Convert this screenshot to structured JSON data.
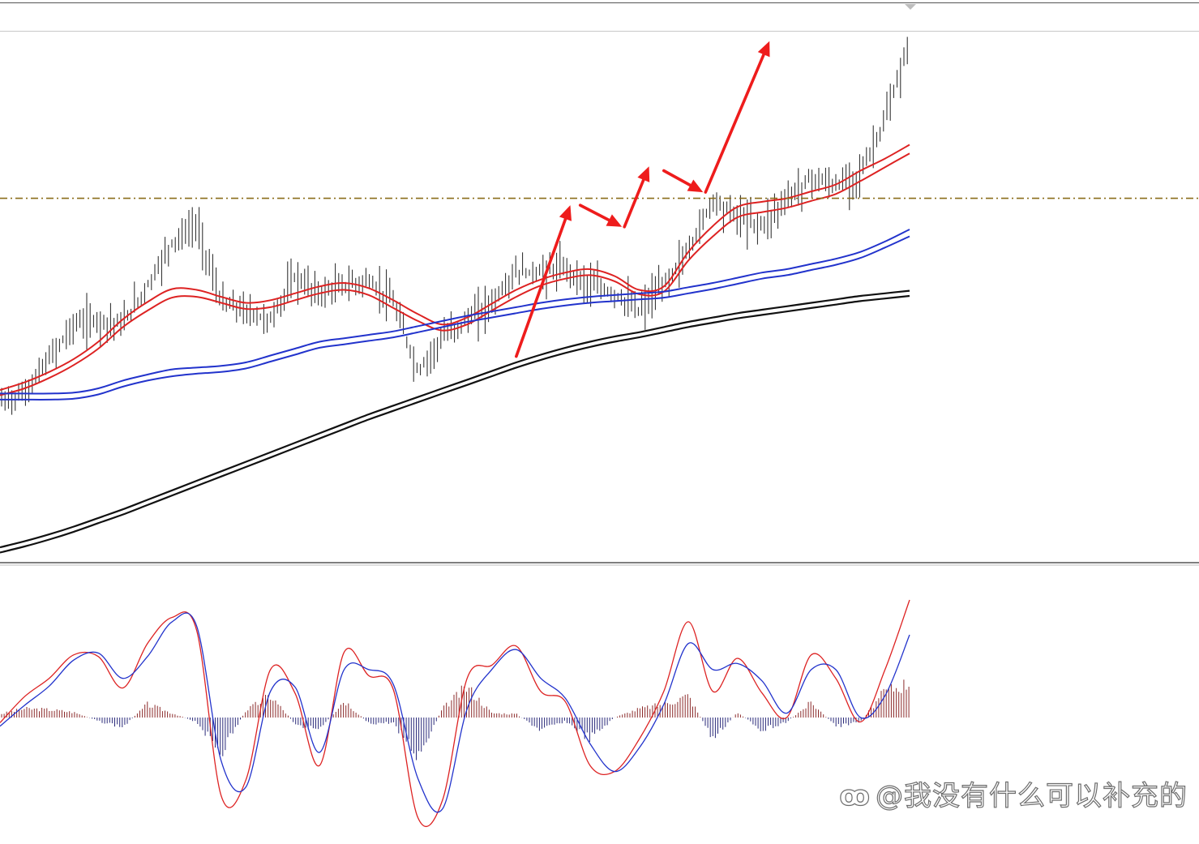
{
  "chart_data": {
    "type": "line",
    "title": "",
    "xlabel": "",
    "ylabel": "",
    "grid": false,
    "price_panel": {
      "series": [
        {
          "role": "ema_fast_1",
          "color": "#dd2222",
          "values": [
            0.16,
            0.25,
            0.37,
            0.52,
            0.72,
            0.98,
            1.18,
            1.33,
            1.32,
            1.24,
            1.17,
            1.2,
            1.28,
            1.36,
            1.4,
            1.34,
            1.2,
            1.04,
            0.92,
            1.0,
            1.16,
            1.32,
            1.44,
            1.52,
            1.56,
            1.48,
            1.32,
            1.36,
            1.76,
            2.06,
            2.28,
            2.34,
            2.38,
            2.46,
            2.54,
            2.7,
            2.84,
            3.0
          ]
        },
        {
          "role": "ema_fast_2",
          "color": "#dd2222",
          "values": [
            0.1,
            0.18,
            0.3,
            0.45,
            0.64,
            0.89,
            1.08,
            1.23,
            1.24,
            1.17,
            1.1,
            1.12,
            1.2,
            1.28,
            1.32,
            1.26,
            1.11,
            0.96,
            0.85,
            0.92,
            1.08,
            1.24,
            1.37,
            1.45,
            1.49,
            1.42,
            1.27,
            1.3,
            1.66,
            1.94,
            2.16,
            2.22,
            2.27,
            2.35,
            2.43,
            2.58,
            2.74,
            2.9
          ]
        },
        {
          "role": "ema_mid_1",
          "color": "#2233cc",
          "values": [
            0.12,
            0.12,
            0.12,
            0.13,
            0.18,
            0.27,
            0.34,
            0.4,
            0.42,
            0.44,
            0.48,
            0.56,
            0.64,
            0.72,
            0.76,
            0.8,
            0.84,
            0.9,
            0.96,
            1.02,
            1.07,
            1.12,
            1.17,
            1.21,
            1.24,
            1.26,
            1.28,
            1.3,
            1.35,
            1.4,
            1.46,
            1.52,
            1.56,
            1.62,
            1.68,
            1.76,
            1.88,
            2.02
          ]
        },
        {
          "role": "ema_mid_2",
          "color": "#2233cc",
          "values": [
            0.05,
            0.05,
            0.05,
            0.06,
            0.11,
            0.2,
            0.27,
            0.32,
            0.35,
            0.37,
            0.41,
            0.49,
            0.57,
            0.65,
            0.69,
            0.73,
            0.77,
            0.83,
            0.89,
            0.95,
            1.0,
            1.05,
            1.1,
            1.14,
            1.17,
            1.19,
            1.21,
            1.23,
            1.28,
            1.33,
            1.39,
            1.45,
            1.49,
            1.55,
            1.61,
            1.69,
            1.81,
            1.94
          ]
        },
        {
          "role": "ema_slow_1",
          "color": "#111111",
          "values": [
            -1.66,
            -1.59,
            -1.51,
            -1.42,
            -1.32,
            -1.22,
            -1.11,
            -1.0,
            -0.89,
            -0.78,
            -0.67,
            -0.56,
            -0.45,
            -0.34,
            -0.23,
            -0.12,
            -0.02,
            0.08,
            0.18,
            0.28,
            0.38,
            0.48,
            0.57,
            0.65,
            0.72,
            0.78,
            0.83,
            0.89,
            0.95,
            1.0,
            1.05,
            1.09,
            1.13,
            1.17,
            1.21,
            1.25,
            1.28,
            1.31
          ]
        },
        {
          "role": "ema_slow_2",
          "color": "#111111",
          "values": [
            -1.72,
            -1.65,
            -1.57,
            -1.48,
            -1.38,
            -1.28,
            -1.17,
            -1.06,
            -0.95,
            -0.84,
            -0.73,
            -0.62,
            -0.51,
            -0.4,
            -0.29,
            -0.18,
            -0.08,
            0.02,
            0.12,
            0.22,
            0.32,
            0.42,
            0.51,
            0.59,
            0.66,
            0.72,
            0.77,
            0.83,
            0.89,
            0.94,
            0.99,
            1.03,
            1.07,
            1.11,
            1.15,
            1.19,
            1.22,
            1.25
          ]
        },
        {
          "role": "price_bars",
          "color": "#222222",
          "values": [
            0.05,
            0.15,
            0.55,
            0.95,
            1.0,
            0.95,
            1.4,
            1.9,
            2.1,
            1.2,
            1.1,
            1.0,
            1.5,
            1.3,
            1.4,
            1.45,
            1.2,
            0.4,
            0.8,
            1.0,
            1.2,
            1.55,
            1.55,
            1.6,
            1.4,
            1.3,
            1.1,
            1.4,
            1.8,
            2.4,
            2.2,
            2.1,
            2.4,
            2.65,
            2.55,
            2.7,
            3.3,
            4.2
          ]
        }
      ],
      "horizontal_level": 2.38,
      "horizontal_level_color": "#8a6d1a",
      "ylim": [
        -1.8,
        4.3
      ]
    },
    "oscillator_panel": {
      "zero_line": 0,
      "ylim": [
        -1.35,
        1.35
      ],
      "series": [
        {
          "role": "macd_line",
          "color": "#dd2222",
          "values": [
            -0.06,
            0.24,
            0.45,
            0.72,
            0.7,
            0.34,
            0.85,
            1.15,
            1.0,
            -0.9,
            -0.72,
            0.55,
            0.28,
            -0.55,
            0.75,
            0.48,
            0.32,
            -1.15,
            -0.95,
            0.45,
            0.6,
            0.82,
            0.3,
            0.18,
            -0.55,
            -0.62,
            -0.25,
            0.3,
            1.1,
            0.3,
            0.68,
            0.28,
            0.0,
            0.72,
            0.45,
            -0.05,
            0.55,
            1.35
          ]
        },
        {
          "role": "signal_line",
          "color": "#2233cc",
          "values": [
            -0.1,
            0.14,
            0.36,
            0.66,
            0.74,
            0.45,
            0.7,
            1.1,
            1.05,
            -0.5,
            -0.8,
            0.3,
            0.35,
            -0.4,
            0.55,
            0.55,
            0.38,
            -0.7,
            -1.05,
            0.1,
            0.55,
            0.78,
            0.45,
            0.22,
            -0.3,
            -0.62,
            -0.35,
            0.15,
            0.85,
            0.55,
            0.62,
            0.42,
            0.05,
            0.55,
            0.55,
            0.0,
            0.25,
            0.95
          ]
        },
        {
          "role": "histogram",
          "positive_color": "#8b2a2a",
          "negative_color": "#2a2a7a",
          "values": [
            0.04,
            0.1,
            0.09,
            0.06,
            -0.04,
            -0.11,
            0.15,
            0.05,
            -0.05,
            -0.4,
            0.08,
            0.25,
            -0.07,
            -0.15,
            0.2,
            -0.07,
            -0.06,
            -0.45,
            0.1,
            0.35,
            0.05,
            0.04,
            -0.15,
            -0.04,
            -0.25,
            0.0,
            0.1,
            0.15,
            0.25,
            -0.25,
            0.06,
            -0.14,
            -0.05,
            0.17,
            -0.1,
            -0.05,
            0.3,
            0.4
          ]
        }
      ]
    }
  },
  "annotations": {
    "arrow_color": "#ee1c1c",
    "price_arrows": [
      {
        "from": [
          21.0,
          0.55
        ],
        "to": [
          23.2,
          2.3
        ]
      },
      {
        "from": [
          23.6,
          2.3
        ],
        "to": [
          25.3,
          2.05
        ]
      },
      {
        "from": [
          25.4,
          2.05
        ],
        "to": [
          26.4,
          2.75
        ]
      },
      {
        "from": [
          27.0,
          2.7
        ],
        "to": [
          28.6,
          2.45
        ]
      },
      {
        "from": [
          28.7,
          2.45
        ],
        "to": [
          31.3,
          4.2
        ]
      }
    ]
  },
  "watermark": {
    "logo": "ꝏ",
    "text": "@我没有什么可以补充的"
  }
}
